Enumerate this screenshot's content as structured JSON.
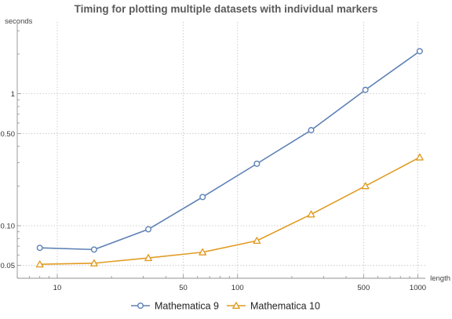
{
  "chart_data": {
    "type": "line",
    "title": "Timing for plotting multiple datasets with individual markers",
    "xlabel": "length",
    "ylabel": "seconds",
    "xscale": "log",
    "yscale": "log",
    "xlim": [
      6,
      1100
    ],
    "ylim": [
      0.04,
      3.5
    ],
    "x_ticks": [
      {
        "value": 10,
        "label": "10"
      },
      {
        "value": 50,
        "label": "50"
      },
      {
        "value": 100,
        "label": "100"
      },
      {
        "value": 500,
        "label": "500"
      },
      {
        "value": 1000,
        "label": "1000"
      }
    ],
    "y_ticks": [
      {
        "value": 0.05,
        "label": "0.05"
      },
      {
        "value": 0.1,
        "label": "0.10"
      },
      {
        "value": 0.5,
        "label": "0.50"
      },
      {
        "value": 1,
        "label": "1"
      }
    ],
    "x_gridlines": [
      10,
      50,
      100,
      500,
      1000
    ],
    "y_gridlines": [
      0.05,
      0.1,
      0.5,
      1
    ],
    "grid": true,
    "legend_position": "bottom",
    "series": [
      {
        "name": "Mathematica 9",
        "color": "#5e81b5",
        "marker": "circle",
        "x": [
          8,
          16,
          32,
          64,
          128,
          256,
          512,
          1024
        ],
        "y": [
          0.068,
          0.066,
          0.094,
          0.165,
          0.295,
          0.53,
          1.07,
          2.1
        ]
      },
      {
        "name": "Mathematica 10",
        "color": "#e19c24",
        "marker": "triangle",
        "x": [
          8,
          16,
          32,
          64,
          128,
          256,
          512,
          1024
        ],
        "y": [
          0.051,
          0.052,
          0.057,
          0.063,
          0.077,
          0.122,
          0.2,
          0.33
        ]
      }
    ]
  }
}
